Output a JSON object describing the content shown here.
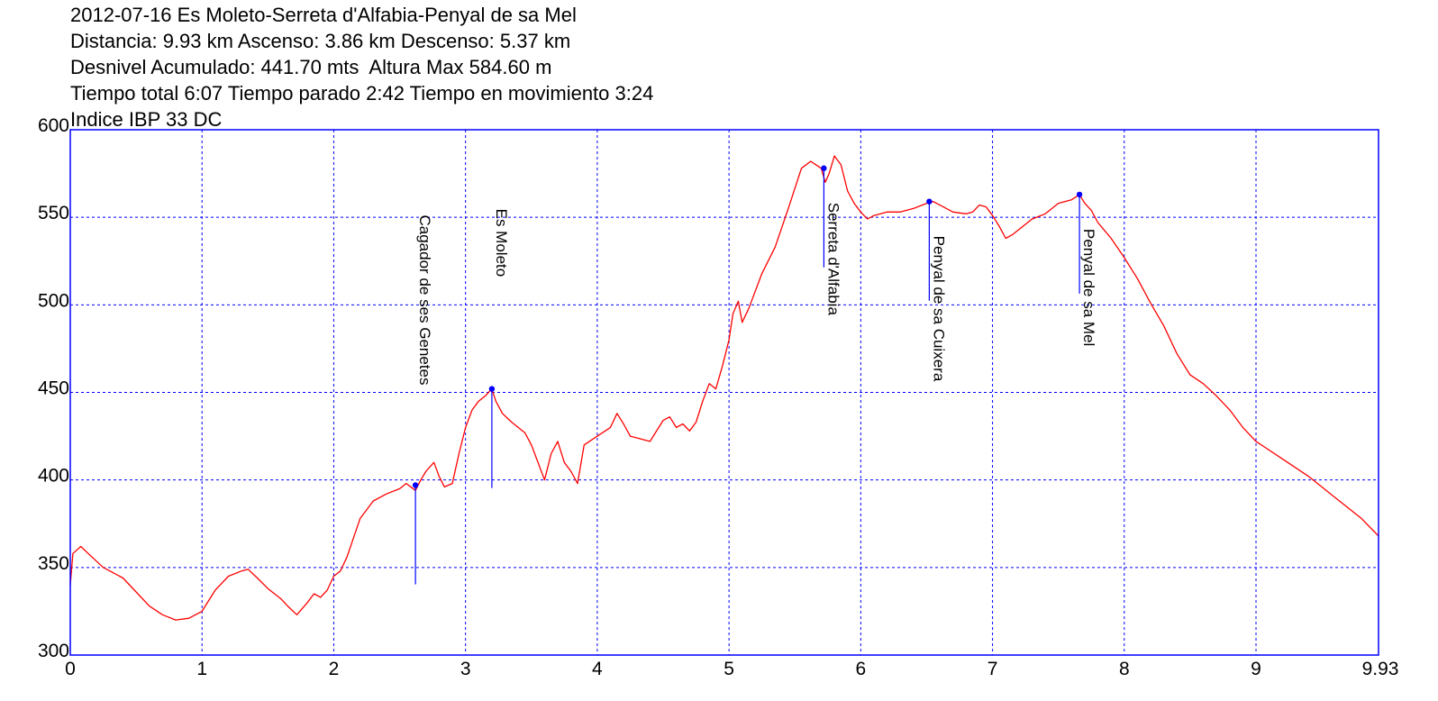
{
  "header": {
    "lines": [
      "2012-07-16 Es Moleto-Serreta d'Alfabia-Penyal de sa Mel",
      "Distancia: 9.93 km Ascenso: 3.86 km Descenso: 5.37 km",
      "Desnivel Acumulado: 441.70 mts  Altura Max 584.60 m",
      "Tiempo total 6:07 Tiempo parado 2:42 Tiempo en movimiento 3:24",
      "Indice IBP 33 DC"
    ]
  },
  "chart_data": {
    "type": "line",
    "title": "2012-07-16 Es Moleto-Serreta d'Alfabia-Penyal de sa Mel",
    "xlabel": "",
    "ylabel": "",
    "xlim": [
      0,
      9.93
    ],
    "ylim": [
      300,
      600
    ],
    "x_ticks": [
      {
        "value": 0,
        "label": "0"
      },
      {
        "value": 1,
        "label": "1"
      },
      {
        "value": 2,
        "label": "2"
      },
      {
        "value": 3,
        "label": "3"
      },
      {
        "value": 4,
        "label": "4"
      },
      {
        "value": 5,
        "label": "5"
      },
      {
        "value": 6,
        "label": "6"
      },
      {
        "value": 7,
        "label": "7"
      },
      {
        "value": 8,
        "label": "8"
      },
      {
        "value": 9,
        "label": "9"
      },
      {
        "value": 9.93,
        "label": "9.93"
      }
    ],
    "y_ticks": [
      {
        "value": 300,
        "label": "300"
      },
      {
        "value": 350,
        "label": "350"
      },
      {
        "value": 400,
        "label": "400"
      },
      {
        "value": 450,
        "label": "450"
      },
      {
        "value": 500,
        "label": "500"
      },
      {
        "value": 550,
        "label": "550"
      },
      {
        "value": 600,
        "label": "600"
      }
    ],
    "grid": true,
    "colors": {
      "line": "#ff0000",
      "frame": "#0000ff",
      "grid": "#0000ff",
      "marker": "#0000ff"
    },
    "series": [
      {
        "x": [
          0,
          0.02,
          0.08,
          0.15,
          0.25,
          0.4,
          0.5,
          0.6,
          0.7,
          0.8,
          0.9,
          1.0,
          1.1,
          1.2,
          1.3,
          1.35,
          1.42,
          1.5,
          1.6,
          1.65,
          1.72,
          1.8,
          1.85,
          1.9,
          1.95,
          2.0,
          2.05,
          2.1,
          2.2,
          2.3,
          2.4,
          2.5,
          2.55,
          2.62,
          2.66,
          2.7,
          2.76,
          2.8,
          2.84,
          2.9,
          2.95,
          3.0,
          3.05,
          3.1,
          3.15,
          3.2,
          3.23,
          3.28,
          3.35,
          3.45,
          3.5,
          3.55,
          3.6,
          3.65,
          3.7,
          3.75,
          3.8,
          3.85,
          3.9,
          4.0,
          4.1,
          4.15,
          4.2,
          4.25,
          4.3,
          4.4,
          4.5,
          4.55,
          4.6,
          4.65,
          4.7,
          4.75,
          4.8,
          4.85,
          4.9,
          4.95,
          5.0,
          5.03,
          5.07,
          5.1,
          5.15,
          5.25,
          5.35,
          5.45,
          5.55,
          5.62,
          5.66,
          5.7,
          5.73,
          5.76,
          5.8,
          5.85,
          5.9,
          5.95,
          6.0,
          6.05,
          6.1,
          6.2,
          6.3,
          6.4,
          6.5,
          6.55,
          6.6,
          6.7,
          6.8,
          6.85,
          6.9,
          6.95,
          7.0,
          7.05,
          7.1,
          7.15,
          7.2,
          7.3,
          7.4,
          7.5,
          7.6,
          7.66,
          7.7,
          7.75,
          7.8,
          7.9,
          8.0,
          8.1,
          8.2,
          8.3,
          8.4,
          8.5,
          8.6,
          8.7,
          8.8,
          8.9,
          9.0,
          9.2,
          9.4,
          9.6,
          9.8,
          9.93
        ],
        "y": [
          340,
          358,
          362,
          357,
          350,
          344,
          336,
          328,
          323,
          320,
          321,
          325,
          337,
          345,
          348,
          349,
          344,
          338,
          332,
          328,
          323,
          330,
          335,
          333,
          337,
          345,
          348,
          356,
          378,
          388,
          392,
          395,
          398,
          394,
          400,
          405,
          410,
          402,
          396,
          398,
          415,
          430,
          440,
          445,
          448,
          452,
          445,
          438,
          433,
          427,
          420,
          410,
          400,
          415,
          422,
          410,
          405,
          398,
          420,
          425,
          430,
          438,
          432,
          425,
          424,
          422,
          434,
          436,
          430,
          432,
          428,
          433,
          445,
          455,
          452,
          465,
          480,
          495,
          502,
          490,
          498,
          518,
          533,
          555,
          578,
          582,
          580,
          578,
          570,
          575,
          585,
          580,
          565,
          558,
          553,
          549,
          551,
          553,
          553,
          555,
          558,
          559,
          557,
          553,
          552,
          553,
          557,
          556,
          551,
          545,
          538,
          540,
          543,
          549,
          552,
          558,
          560,
          563,
          558,
          554,
          547,
          538,
          527,
          515,
          501,
          488,
          472,
          460,
          455,
          448,
          440,
          430,
          422,
          412,
          402,
          390,
          378,
          368
        ]
      }
    ],
    "markers": [
      {
        "label": "Cagador de ses Genetes",
        "x": 2.62,
        "y": 397
      },
      {
        "label": "Es Moleto",
        "x": 3.2,
        "y": 452
      },
      {
        "label": "Serreta d'Alfabia",
        "x": 5.72,
        "y": 578
      },
      {
        "label": "Penyal de sa Cuixera",
        "x": 6.52,
        "y": 559
      },
      {
        "label": "Penyal de sa Mel",
        "x": 7.66,
        "y": 563
      }
    ]
  }
}
